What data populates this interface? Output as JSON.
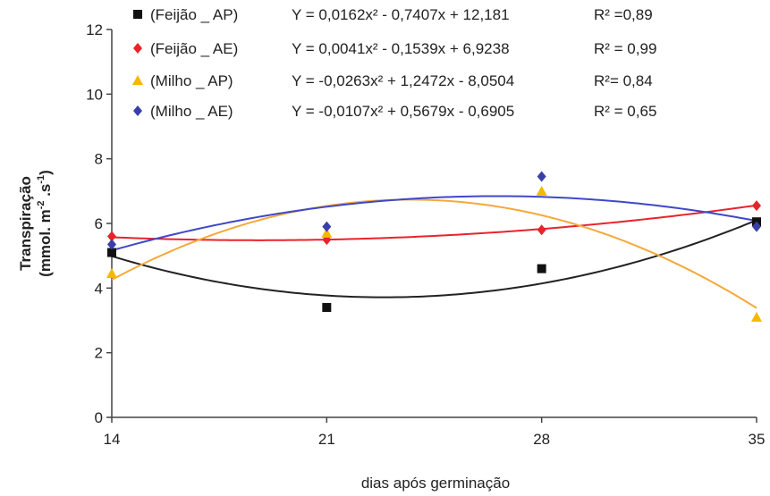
{
  "chart_data": {
    "type": "scatter",
    "title": "",
    "xlabel": "dias após germinação",
    "ylabel_line1": "Transpiração",
    "ylabel_line2": "(mmol. m",
    "ylabel_sup1": "-2",
    "ylabel_mid": " .s",
    "ylabel_sup2": "-1",
    "ylabel_end": ")",
    "x": [
      14,
      21,
      28,
      35
    ],
    "xticks": [
      "14",
      "21",
      "28",
      "35"
    ],
    "yticks": [
      "0",
      "2",
      "4",
      "6",
      "8",
      "10",
      "12"
    ],
    "xlim": [
      14,
      35
    ],
    "ylim": [
      0,
      12
    ],
    "grid": false,
    "legend_position": "top-left",
    "series": [
      {
        "name": "(Feijão _ AP)",
        "marker": "square",
        "color": "#111111",
        "line_color": "#222222",
        "values": [
          5.1,
          3.4,
          4.6,
          6.05
        ],
        "equation": "Y = 0,0162x² - 0,7407x + 12,181",
        "r2": "R² =0,89",
        "coef": [
          0.0162,
          -0.7407,
          12.181
        ]
      },
      {
        "name": "(Feijão _ AE)",
        "marker": "diamond",
        "color": "#e8232a",
        "line_color": "#e8232a",
        "values": [
          5.6,
          5.5,
          5.8,
          6.55
        ],
        "equation": "Y = 0,0041x² - 0,1539x + 6,9238",
        "r2": "R² = 0,99",
        "coef": [
          0.0041,
          -0.1539,
          6.9238
        ]
      },
      {
        "name": "(Milho _ AP)",
        "marker": "triangle",
        "color": "#f5b800",
        "line_color": "#f5a93a",
        "values": [
          4.45,
          5.7,
          7.0,
          3.1
        ],
        "equation": "Y = -0,0263x² + 1,2472x - 8,0504",
        "r2": "R²= 0,84",
        "coef": [
          -0.0263,
          1.2472,
          -8.0504
        ]
      },
      {
        "name": "(Milho _ AE)",
        "marker": "diamond",
        "color": "#3a3fa8",
        "line_color": "#3f48c8",
        "values": [
          5.35,
          5.9,
          7.45,
          5.9
        ],
        "equation": "Y = -0,0107x² + 0,5679x - 0,6905",
        "r2": "R² =  0,65",
        "coef": [
          -0.0107,
          0.5679,
          -0.6905
        ]
      }
    ]
  }
}
